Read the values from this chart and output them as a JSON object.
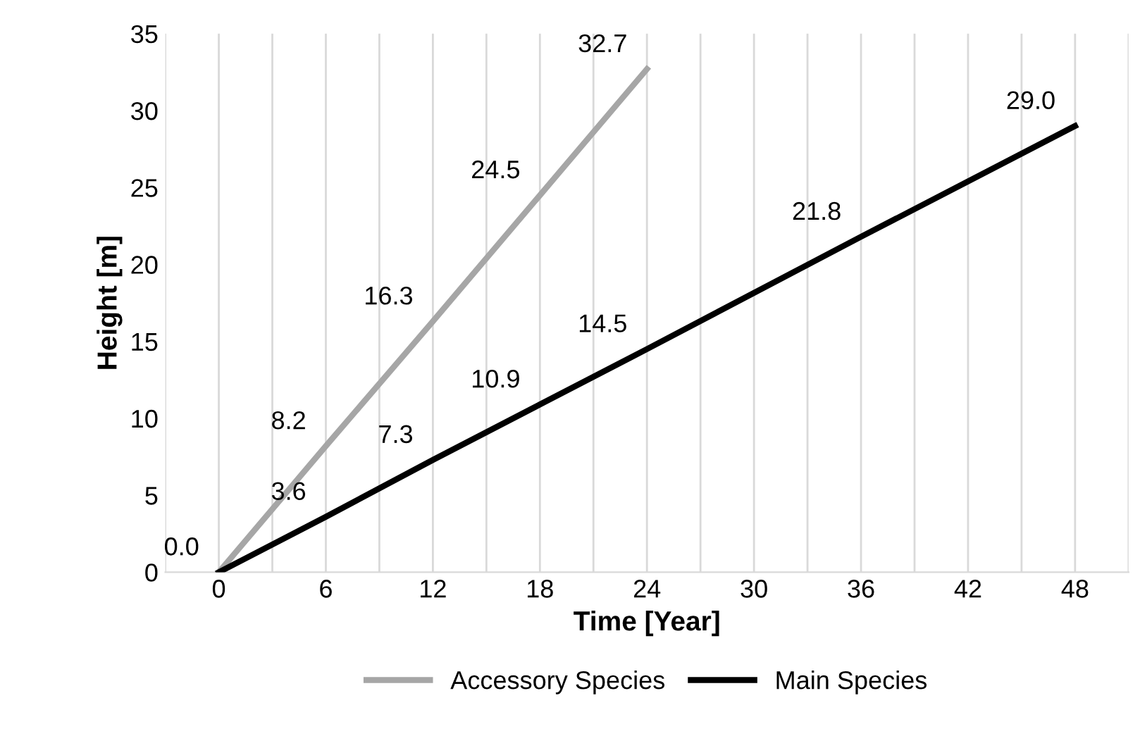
{
  "chart_data": {
    "type": "line",
    "xlabel": "Time [Year]",
    "ylabel": "Height [m]",
    "xlim": [
      -3,
      51
    ],
    "ylim": [
      0,
      35
    ],
    "xticks": [
      {
        "value": -3,
        "label": null
      },
      0,
      {
        "value": 3,
        "label": null
      },
      6,
      {
        "value": 9,
        "label": null
      },
      12,
      {
        "value": 15,
        "label": null
      },
      18,
      {
        "value": 21,
        "label": null
      },
      24,
      {
        "value": 27,
        "label": null
      },
      30,
      {
        "value": 33,
        "label": null
      },
      36,
      {
        "value": 39,
        "label": null
      },
      42,
      {
        "value": 45,
        "label": null
      },
      48,
      {
        "value": 51,
        "label": null
      }
    ],
    "yticks": [
      0,
      5,
      10,
      15,
      20,
      25,
      30,
      35
    ],
    "grid": "x",
    "legend": "bottom",
    "marker": "none",
    "line_style": "solid",
    "series": [
      {
        "name": "Accessory Species",
        "color": "#a6a6a6",
        "x": [
          0,
          6,
          12,
          18,
          24
        ],
        "values": [
          0.0,
          8.2,
          16.3,
          24.5,
          32.7
        ],
        "value_labels": [
          "0.0",
          "8.2",
          "16.3",
          "24.5",
          "32.7"
        ]
      },
      {
        "name": "Main Species",
        "color": "#000000",
        "x": [
          0,
          6,
          12,
          18,
          24,
          36,
          48
        ],
        "values": [
          0.0,
          3.6,
          7.3,
          10.9,
          14.5,
          21.8,
          29.0
        ],
        "value_labels": [
          null,
          "3.6",
          "7.3",
          "10.9",
          "14.5",
          "21.8",
          "29.0"
        ]
      }
    ]
  }
}
